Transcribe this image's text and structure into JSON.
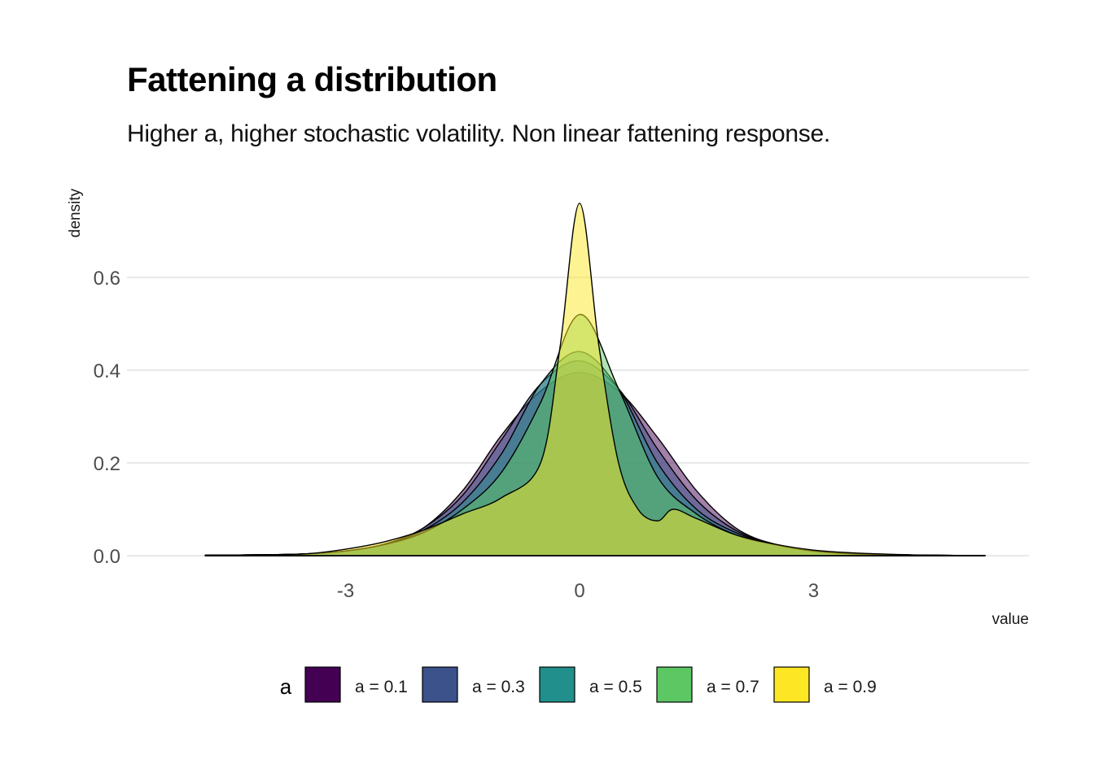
{
  "title": "Fattening a distribution",
  "subtitle": "Higher a, higher stochastic volatility. Non linear fattening response.",
  "chart_data": {
    "type": "area",
    "subtype": "density",
    "xlabel": "value",
    "ylabel": "density",
    "xlim": [
      -5.0,
      5.35
    ],
    "ylim": [
      0,
      0.78
    ],
    "x_ticks": [
      "-3",
      "0",
      "3"
    ],
    "x_tick_values": [
      -3,
      0,
      3
    ],
    "y_ticks": [
      "0.0",
      "0.2",
      "0.4",
      "0.6"
    ],
    "y_tick_values": [
      0,
      0.2,
      0.4,
      0.6
    ],
    "grid": true,
    "legend": {
      "title": "a",
      "position": "bottom",
      "entries": [
        "a = 0.1",
        "a = 0.3",
        "a = 0.5",
        "a = 0.7",
        "a = 0.9"
      ]
    },
    "series": [
      {
        "name": "a = 0.1",
        "color": "#440154",
        "x": [
          -4.8,
          -4.0,
          -3.5,
          -3.0,
          -2.5,
          -2.0,
          -1.5,
          -1.0,
          -0.5,
          0.0,
          0.5,
          1.0,
          1.5,
          2.0,
          2.5,
          3.0,
          3.5,
          4.0,
          4.5,
          5.2
        ],
        "y": [
          0.001,
          0.002,
          0.004,
          0.01,
          0.025,
          0.06,
          0.14,
          0.26,
          0.355,
          0.395,
          0.355,
          0.255,
          0.14,
          0.06,
          0.024,
          0.009,
          0.004,
          0.002,
          0.001,
          0.0
        ]
      },
      {
        "name": "a = 0.3",
        "color": "#3B528B",
        "x": [
          -4.8,
          -4.0,
          -3.5,
          -3.0,
          -2.5,
          -2.0,
          -1.5,
          -1.0,
          -0.5,
          0.0,
          0.5,
          1.0,
          1.5,
          2.0,
          2.5,
          3.0,
          3.5,
          4.0,
          4.5,
          5.2
        ],
        "y": [
          0.001,
          0.002,
          0.004,
          0.01,
          0.025,
          0.06,
          0.13,
          0.25,
          0.37,
          0.42,
          0.36,
          0.23,
          0.12,
          0.055,
          0.025,
          0.01,
          0.004,
          0.002,
          0.001,
          0.0
        ]
      },
      {
        "name": "a = 0.5",
        "color": "#21908C",
        "x": [
          -4.8,
          -4.0,
          -3.5,
          -3.0,
          -2.5,
          -2.0,
          -1.5,
          -1.0,
          -0.5,
          0.0,
          0.5,
          1.0,
          1.5,
          2.0,
          2.5,
          3.0,
          3.5,
          4.0,
          4.5,
          5.2
        ],
        "y": [
          0.001,
          0.002,
          0.004,
          0.01,
          0.025,
          0.055,
          0.115,
          0.22,
          0.37,
          0.44,
          0.36,
          0.2,
          0.1,
          0.05,
          0.025,
          0.01,
          0.004,
          0.002,
          0.001,
          0.0
        ]
      },
      {
        "name": "a = 0.7",
        "color": "#5DC863",
        "x": [
          -4.8,
          -4.0,
          -3.5,
          -3.0,
          -2.5,
          -2.0,
          -1.5,
          -1.0,
          -0.5,
          0.0,
          0.5,
          1.0,
          1.5,
          2.0,
          2.5,
          3.0,
          3.5,
          4.0,
          4.5,
          5.2
        ],
        "y": [
          0.001,
          0.002,
          0.004,
          0.01,
          0.024,
          0.05,
          0.1,
          0.18,
          0.33,
          0.52,
          0.36,
          0.17,
          0.09,
          0.045,
          0.024,
          0.01,
          0.004,
          0.002,
          0.001,
          0.0
        ]
      },
      {
        "name": "a = 0.9",
        "color": "#FDE725",
        "x": [
          -4.8,
          -4.0,
          -3.5,
          -3.0,
          -2.5,
          -2.0,
          -1.5,
          -1.0,
          -0.5,
          -0.25,
          0.0,
          0.25,
          0.5,
          0.75,
          1.0,
          1.2,
          1.5,
          2.0,
          2.5,
          3.0,
          3.5,
          4.0,
          4.5,
          5.2
        ],
        "y": [
          0.001,
          0.002,
          0.004,
          0.014,
          0.03,
          0.055,
          0.09,
          0.125,
          0.2,
          0.45,
          0.76,
          0.45,
          0.2,
          0.1,
          0.075,
          0.1,
          0.08,
          0.045,
          0.025,
          0.012,
          0.006,
          0.003,
          0.001,
          0.0
        ]
      }
    ]
  }
}
